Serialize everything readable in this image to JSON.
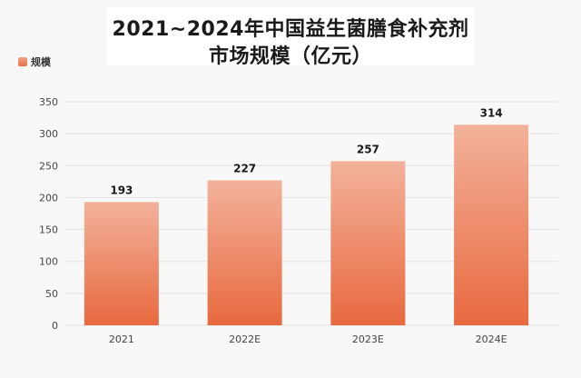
{
  "title": {
    "line1": "2021~2024年中国益生菌膳食补充剂",
    "line2": "市场规模（亿元）"
  },
  "legend": {
    "label": "规模",
    "color": "#e8734e"
  },
  "chart_data": {
    "type": "bar",
    "title": "2021~2024年中国益生菌膳食补充剂市场规模（亿元）",
    "categories": [
      "2021",
      "2022E",
      "2023E",
      "2024E"
    ],
    "series": [
      {
        "name": "规模",
        "values": [
          193,
          227,
          257,
          314
        ]
      }
    ],
    "data_labels": [
      "193",
      "227",
      "257",
      "314"
    ],
    "ylim": [
      0,
      350
    ],
    "yticks": [
      0,
      50,
      100,
      150,
      200,
      250,
      300,
      350
    ],
    "grid": true,
    "legend_position": "top-left",
    "colors": {
      "bar_top": "#f3b29b",
      "bar_bottom": "#e8693f",
      "grid": "#e2e2e2"
    }
  }
}
